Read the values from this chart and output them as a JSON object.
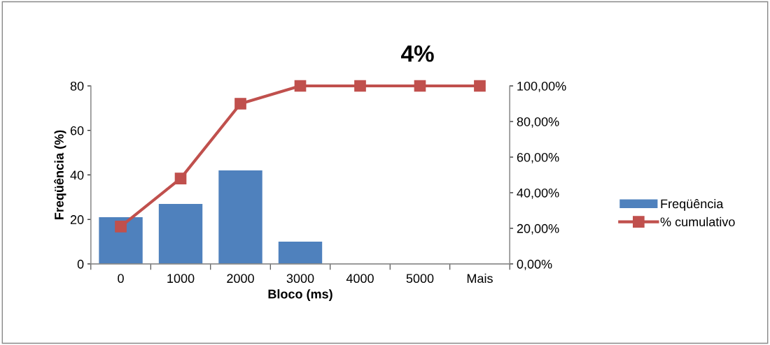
{
  "chart_data": {
    "type": "bar",
    "title": "4%",
    "xlabel": "Bloco (ms)",
    "ylabel": "Freqüência (%)",
    "categories": [
      "0",
      "1000",
      "2000",
      "3000",
      "4000",
      "5000",
      "Mais"
    ],
    "series": [
      {
        "name": "Freqüência",
        "color": "#4f81bd",
        "values": [
          21,
          27,
          42,
          10,
          0,
          0,
          0
        ]
      },
      {
        "name": "% cumulativo",
        "type": "line",
        "axis": "y2",
        "color": "#c0504d",
        "marker": "square",
        "values": [
          21,
          48,
          90,
          100,
          100,
          100,
          100
        ]
      }
    ],
    "ylim": [
      0,
      80
    ],
    "yticks": [
      0,
      20,
      40,
      60,
      80
    ],
    "y2lim": [
      0,
      100
    ],
    "y2ticks": [
      {
        "value": 0,
        "label": "0,00%"
      },
      {
        "value": 20,
        "label": "20,00%"
      },
      {
        "value": 40,
        "label": "40,00%"
      },
      {
        "value": 60,
        "label": "60,00%"
      },
      {
        "value": 80,
        "label": "80,00%"
      },
      {
        "value": 100,
        "label": "100,00%"
      }
    ],
    "grid": false,
    "legend": "right"
  }
}
